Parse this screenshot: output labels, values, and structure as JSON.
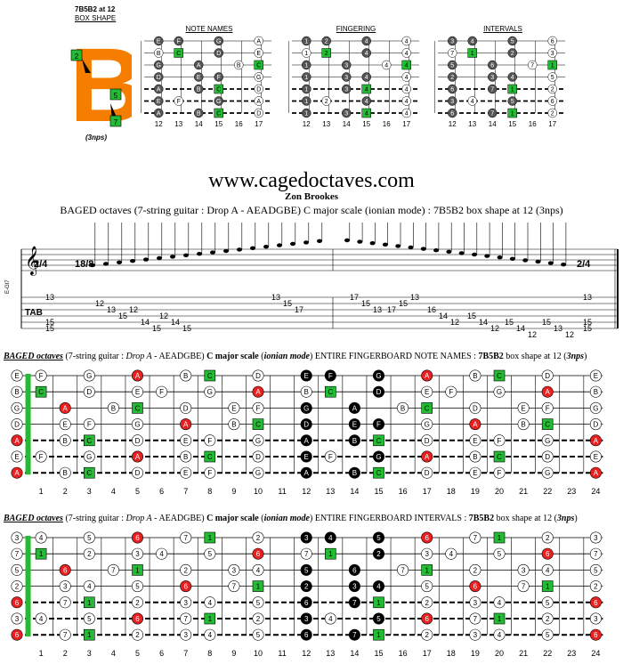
{
  "box": {
    "name": "7B5B2 at 12",
    "shape": "BOX SHAPE",
    "letter": "B",
    "nps": "(3nps)",
    "markers": [
      "2",
      "5",
      "7"
    ]
  },
  "diagrams": {
    "note_names_title": "NOTE NAMES",
    "fingering_title": "FINGERING",
    "intervals_title": "INTERVALS",
    "frets": [
      "12",
      "13",
      "14",
      "15",
      "16",
      "17"
    ]
  },
  "header": {
    "site": "www.cagedoctaves.com",
    "author": "Zon Brookes",
    "subtitle": "BAGED octaves (7-string guitar : Drop A - AEADGBE) C major scale (ionian mode) : 7B5B2 box shape at 12 (3nps)"
  },
  "score": {
    "time_left": "2/4",
    "time_mid": "18/8",
    "time_right": "2/4",
    "tab_label": "TAB",
    "tuning": "E-Gt7",
    "tab_numbers": [
      [
        "13",
        "15",
        "15"
      ],
      [
        "12",
        "13",
        "15"
      ],
      [
        "12",
        "14",
        "15"
      ],
      [
        "12",
        "14",
        "15"
      ],
      [
        "13",
        "15",
        "17"
      ],
      [
        "17",
        "15",
        "13"
      ],
      [
        "17",
        "15",
        "13"
      ],
      [
        "16",
        "14",
        "12"
      ],
      [
        "15",
        "14",
        "12"
      ],
      [
        "15",
        "14",
        "12"
      ],
      [
        "15",
        "13",
        "12"
      ],
      [
        "13",
        "15",
        "15"
      ]
    ]
  },
  "section_notes": {
    "title_a": "BAGED octaves",
    "title_b": " (7-string guitar : ",
    "title_c": "Drop A",
    "title_d": " - AEADGBE) ",
    "title_e": "C major scale",
    "title_f": " (",
    "title_g": "ionian mode",
    "title_h": ") ENTIRE FINGERBOARD NOTE NAMES : ",
    "title_i": "7B5B2",
    "title_j": " box shape at 12 (",
    "title_k": "3nps",
    "title_l": ")"
  },
  "section_intervals": {
    "title_a": "BAGED octaves",
    "title_b": " (7-string guitar : ",
    "title_c": "Drop A",
    "title_d": " - AEADGBE) ",
    "title_e": "C major scale",
    "title_f": " (",
    "title_g": "ionian mode",
    "title_h": ") ENTIRE FINGERBOARD INTERVALS : ",
    "title_i": "7B5B2",
    "title_j": " box shape at 12 (",
    "title_k": "3nps",
    "title_l": ")"
  },
  "fret_numbers": [
    "1",
    "2",
    "3",
    "4",
    "5",
    "6",
    "7",
    "8",
    "9",
    "10",
    "11",
    "12",
    "13",
    "14",
    "15",
    "16",
    "17",
    "18",
    "19",
    "20",
    "21",
    "22",
    "23",
    "24"
  ],
  "colors": {
    "green": "#22bb33",
    "orange": "#f57d00",
    "red": "#e82020",
    "black": "#000000",
    "grey": "#666666",
    "cyan": "#7fd6d6"
  }
}
